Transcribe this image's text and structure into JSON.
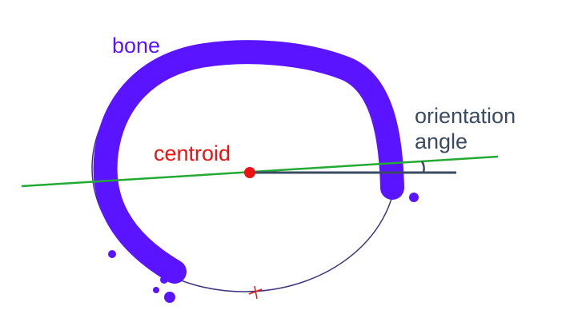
{
  "labels": {
    "bone": "bone",
    "centroid": "centroid",
    "orientation_line1": "orientation",
    "orientation_line2": "angle"
  },
  "colors": {
    "bone": "#5a14ff",
    "centroid": "#ee1111",
    "axis": "#22aa33",
    "reference": "#3a4a60",
    "ellipse_fit": "#3a3680",
    "text_dark": "#3a4a60",
    "background": "#ffffff"
  }
}
